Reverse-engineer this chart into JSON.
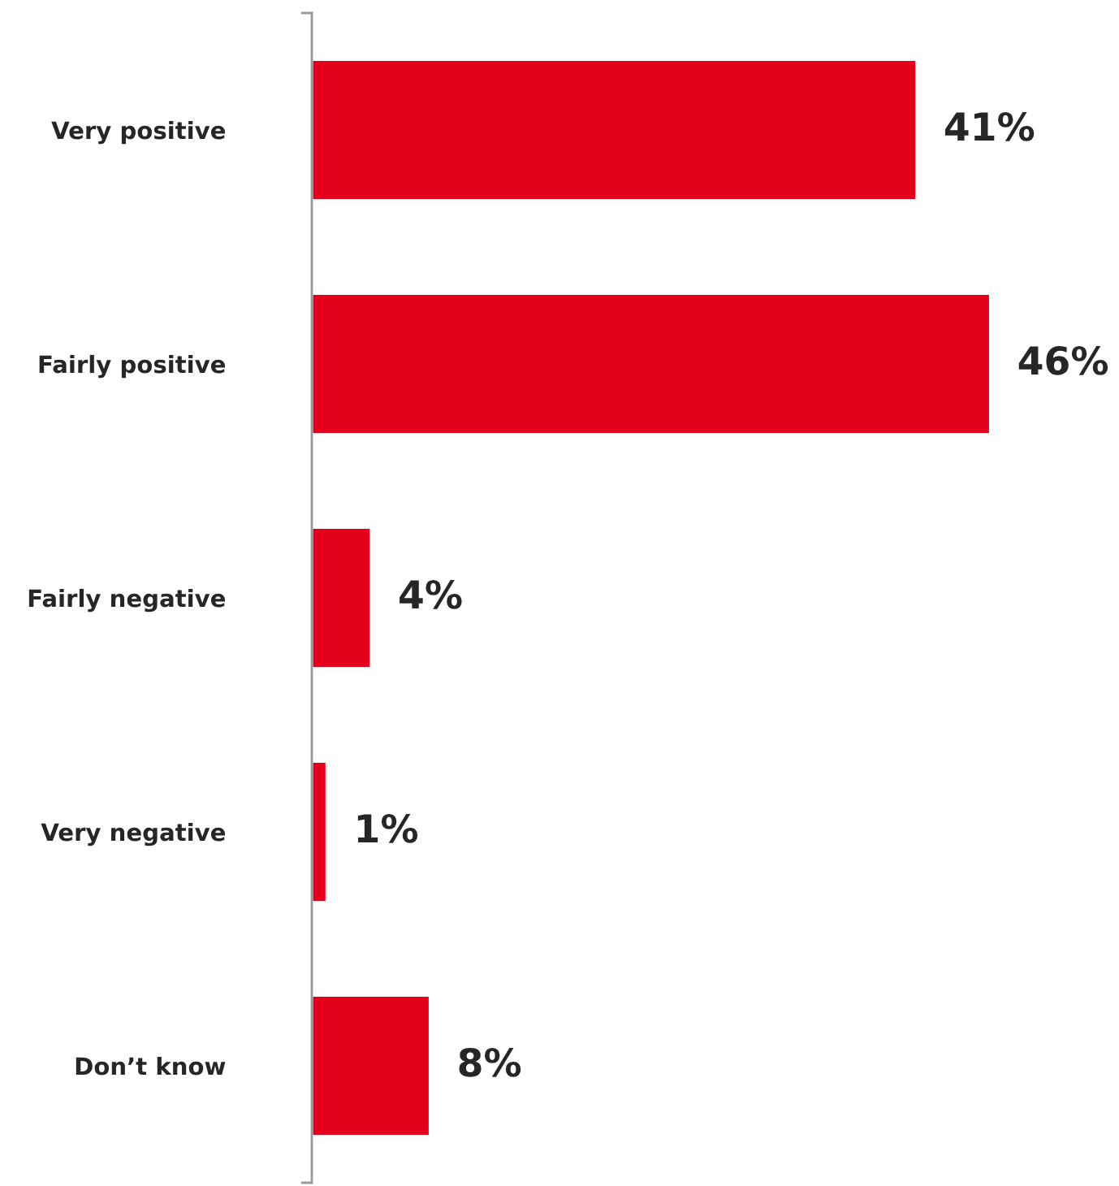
{
  "chart_data": {
    "type": "bar",
    "orientation": "horizontal",
    "categories": [
      "Very positive",
      "Fairly positive",
      "Fairly negative",
      "Very negative",
      "Don’t know"
    ],
    "values": [
      41,
      46,
      4,
      1,
      8
    ],
    "value_labels": [
      "41%",
      "46%",
      "4%",
      "1%",
      "8%"
    ],
    "color": "#e2001a",
    "grid": false,
    "legend": false
  }
}
